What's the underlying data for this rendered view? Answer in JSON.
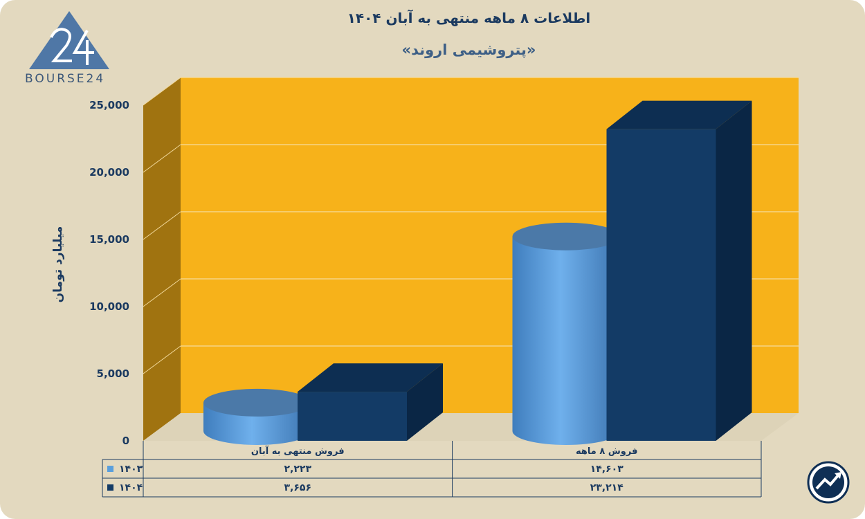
{
  "header": {
    "title": "اطلاعات ۸ ماهه منتهی به آبان ۱۴۰۴",
    "subtitle": "«پتروشیمی اروند»"
  },
  "brand": {
    "logo_text": "BOURSE24"
  },
  "colors": {
    "series_1403": "#5a9fdc",
    "series_1404": "#133b66",
    "plot_back": "#f7b21a",
    "plot_side": "#a07310",
    "background": "#e3d9bf"
  },
  "chart_data": {
    "type": "bar",
    "ylabel": "میلیارد تومان",
    "ylim": [
      0,
      25000
    ],
    "yticks": [
      0,
      5000,
      10000,
      15000,
      20000,
      25000
    ],
    "ytick_labels": [
      "0",
      "5,000",
      "10,000",
      "15,000",
      "20,000",
      "25,000"
    ],
    "categories": [
      "فروش منتهی به  آبان",
      "فروش ۸  ماهه"
    ],
    "series": [
      {
        "name": "۱۴۰۳",
        "shape": "cylinder",
        "color": "#5a9fdc",
        "values": [
          2223,
          14603
        ],
        "value_labels": [
          "۲,۲۲۳",
          "۱۴,۶۰۳"
        ]
      },
      {
        "name": "۱۴۰۴",
        "shape": "box",
        "color": "#133b66",
        "values": [
          3656,
          23214
        ],
        "value_labels": [
          "۳,۶۵۶",
          "۲۳,۲۱۴"
        ]
      }
    ],
    "data_table": true,
    "grid": true
  }
}
